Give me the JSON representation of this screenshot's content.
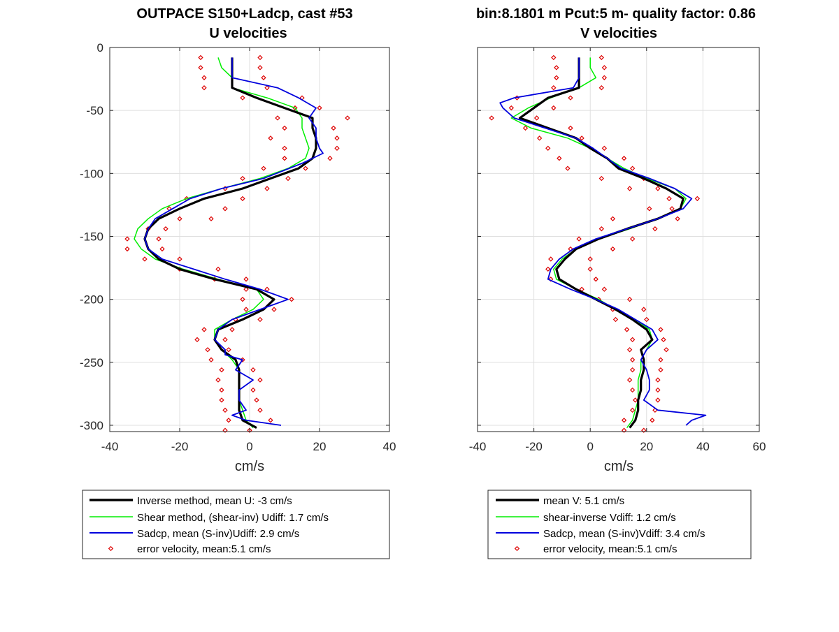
{
  "panels": [
    {
      "title1": "OUTPACE S150+Ladcp, cast #53",
      "title2": "U velocities",
      "xlabel": "cm/s",
      "xlim": [
        -40,
        40
      ],
      "ylim": [
        -305,
        0
      ],
      "xticks": [
        "-40",
        "-20",
        "0",
        "20",
        "40"
      ],
      "yticks": [
        "0",
        "-50",
        "-100",
        "-150",
        "-200",
        "-250",
        "-300"
      ],
      "legend": [
        "Inverse method, mean U:  -3 cm/s",
        "Shear method, (shear-inv)  Udiff:  1.7 cm/s",
        "Sadcp, mean (S-inv)Udiff: 2.9 cm/s",
        "error velocity, mean:5.1 cm/s"
      ]
    },
    {
      "title1": "bin:8.1801 m  Pcut:5 m- quality factor:  0.86",
      "title2": "V velocities",
      "xlabel": "cm/s",
      "xlim": [
        -40,
        60
      ],
      "ylim": [
        -305,
        0
      ],
      "xticks": [
        "-40",
        "-20",
        "0",
        "20",
        "40",
        "60"
      ],
      "yticks": [],
      "legend": [
        "mean V:  5.1 cm/s",
        "shear-inverse Vdiff:  1.2 cm/s",
        "Sadcp, mean (S-inv)Vdiff: 3.4 cm/s",
        "error velocity, mean:5.1 cm/s"
      ]
    }
  ],
  "colors": {
    "inverse": "#000000",
    "shear": "#00ee00",
    "sadcp": "#0000dd",
    "error": "#dd0000"
  },
  "chart_data": [
    {
      "type": "line",
      "series": [
        {
          "key": "inverse",
          "depth": [
            -8,
            -32,
            -40,
            -48,
            -56,
            -64,
            -72,
            -80,
            -88,
            -96,
            -104,
            -112,
            -120,
            -128,
            -136,
            -144,
            -152,
            -160,
            -168,
            -176,
            -184,
            -192,
            -200,
            -208,
            -216,
            -224,
            -232,
            -240,
            -248,
            -256,
            -264,
            -272,
            -280,
            -288,
            -296,
            -302
          ],
          "values": [
            -5,
            -5,
            2,
            10,
            18,
            18,
            19,
            19,
            18,
            14,
            6,
            -2,
            -13,
            -20,
            -26,
            -29,
            -30,
            -29,
            -26,
            -20,
            -10,
            2,
            7,
            4,
            -2,
            -9,
            -10,
            -8,
            -4,
            -3,
            -3,
            -3,
            -3,
            -3,
            -2,
            2
          ]
        },
        {
          "key": "shear",
          "depth": [
            -8,
            -16,
            -24,
            -32,
            -40,
            -48,
            -56,
            -64,
            -72,
            -80,
            -88,
            -96,
            -104,
            -112,
            -120,
            -128,
            -136,
            -144,
            -152,
            -160,
            -168,
            -176,
            -184,
            -192,
            -200,
            -208,
            -216,
            -224,
            -232,
            -240,
            -248,
            -256,
            -264,
            -272,
            -280,
            -288,
            -296,
            -302
          ],
          "values": [
            -9,
            -8,
            -5,
            -5,
            5,
            13,
            15,
            15,
            16,
            17,
            16,
            11,
            3,
            -8,
            -18,
            -25,
            -29,
            -32,
            -33,
            -31,
            -27,
            -19,
            -9,
            2,
            4,
            1,
            -5,
            -10,
            -10,
            -8,
            -5,
            -3,
            -3,
            -3,
            -3,
            -2,
            -1,
            1
          ]
        },
        {
          "key": "sadcp",
          "depth": [
            -8,
            -24,
            -32,
            -40,
            -48,
            -56,
            -64,
            -72,
            -80,
            -84,
            -92,
            -104,
            -112,
            -120,
            -128,
            -136,
            -144,
            -152,
            -160,
            -168,
            -176,
            -184,
            -192,
            -196,
            -200,
            -208,
            -216,
            -224,
            -232,
            -240,
            -244,
            -248,
            -256,
            -264,
            -272,
            -280,
            -288,
            -292,
            -296,
            -300
          ],
          "values": [
            -5,
            -5,
            8,
            14,
            19,
            17,
            19,
            19,
            20,
            21,
            15,
            4,
            -8,
            -17,
            -22,
            -27,
            -29,
            -30,
            -29,
            -25,
            -16,
            -7,
            3,
            7,
            11,
            3,
            -5,
            -9,
            -10,
            -7,
            -7,
            -2,
            -4,
            1,
            -3,
            -3,
            -1,
            -5,
            -1,
            9
          ]
        },
        {
          "key": "error",
          "depth": [
            -8,
            -8,
            -16,
            -16,
            -24,
            -24,
            -32,
            -32,
            -40,
            -40,
            -48,
            -48,
            -56,
            -56,
            -64,
            -64,
            -72,
            -72,
            -80,
            -80,
            -88,
            -88,
            -96,
            -96,
            -104,
            -104,
            -112,
            -112,
            -120,
            -120,
            -128,
            -128,
            -136,
            -136,
            -144,
            -144,
            -152,
            -152,
            -160,
            -160,
            -168,
            -168,
            -176,
            -176,
            -184,
            -184,
            -192,
            -192,
            -200,
            -200,
            -208,
            -208,
            -216,
            -216,
            -224,
            -224,
            -232,
            -232,
            -240,
            -240,
            -248,
            -248,
            -256,
            -256,
            -264,
            -264,
            -272,
            -272,
            -280,
            -280,
            -288,
            -288,
            -296,
            -296,
            -304,
            -304
          ],
          "values": [
            -14,
            3,
            -14,
            3,
            -13,
            4,
            -13,
            5,
            -2,
            15,
            13,
            20,
            8,
            28,
            10,
            24,
            6,
            25,
            10,
            25,
            10,
            23,
            4,
            16,
            -2,
            11,
            -7,
            5,
            -18,
            -2,
            -23,
            -7,
            -20,
            -11,
            -29,
            -24,
            -35,
            -26,
            -35,
            -25,
            -30,
            -20,
            -20,
            -9,
            -10,
            -1,
            -1,
            5,
            -2,
            12,
            -1,
            7,
            -4,
            3,
            -13,
            -5,
            -15,
            -7,
            -12,
            -6,
            -11,
            -2,
            -8,
            1,
            -9,
            3,
            -8,
            1,
            -8,
            2,
            -7,
            3,
            -6,
            6,
            -7,
            0
          ]
        }
      ]
    },
    {
      "type": "line",
      "series": [
        {
          "key": "inverse",
          "depth": [
            -8,
            -32,
            -40,
            -48,
            -56,
            -64,
            -72,
            -80,
            -88,
            -96,
            -104,
            -112,
            -120,
            -128,
            -136,
            -144,
            -152,
            -160,
            -168,
            -176,
            -184,
            -192,
            -200,
            -208,
            -216,
            -224,
            -232,
            -240,
            -248,
            -256,
            -264,
            -272,
            -280,
            -288,
            -296,
            -302
          ],
          "values": [
            -4,
            -4,
            -15,
            -20,
            -25,
            -15,
            -5,
            0,
            6,
            10,
            19,
            27,
            33,
            32,
            24,
            13,
            3,
            -5,
            -9,
            -12,
            -11,
            -5,
            2,
            9,
            15,
            20,
            22,
            18,
            19,
            19,
            18,
            18,
            17,
            17,
            16,
            14
          ]
        },
        {
          "key": "shear",
          "depth": [
            -8,
            -16,
            -24,
            -32,
            -40,
            -48,
            -56,
            -64,
            -72,
            -80,
            -88,
            -96,
            -104,
            -112,
            -120,
            -128,
            -136,
            -144,
            -152,
            -160,
            -168,
            -176,
            -184,
            -192,
            -200,
            -208,
            -216,
            -224,
            -232,
            -240,
            -248,
            -256,
            -264,
            -272,
            -280,
            -288,
            -296,
            -302
          ],
          "values": [
            0,
            0,
            2,
            -4,
            -14,
            -22,
            -28,
            -21,
            -8,
            0,
            6,
            12,
            20,
            30,
            34,
            32,
            24,
            14,
            3,
            -5,
            -10,
            -13,
            -12,
            -5,
            3,
            9,
            16,
            21,
            22,
            20,
            18,
            18,
            17,
            17,
            17,
            16,
            15,
            13
          ]
        },
        {
          "key": "sadcp",
          "depth": [
            -8,
            -24,
            -32,
            -40,
            -44,
            -48,
            -56,
            -64,
            -72,
            -80,
            -88,
            -96,
            -104,
            -112,
            -120,
            -128,
            -136,
            -144,
            -152,
            -160,
            -168,
            -176,
            -184,
            -192,
            -200,
            -208,
            -216,
            -224,
            -232,
            -240,
            -248,
            -256,
            -264,
            -272,
            -280,
            -288,
            -292,
            -296,
            -300
          ],
          "values": [
            -4,
            -4,
            -6,
            -27,
            -32,
            -31,
            -27,
            -16,
            -5,
            1,
            6,
            11,
            21,
            30,
            36,
            33,
            24,
            13,
            2,
            -6,
            -11,
            -14,
            -15,
            -7,
            2,
            10,
            16,
            22,
            24,
            20,
            18,
            20,
            21,
            21,
            19,
            24,
            41,
            36,
            34
          ]
        },
        {
          "key": "error",
          "depth": [
            -8,
            -8,
            -16,
            -16,
            -24,
            -24,
            -32,
            -32,
            -40,
            -40,
            -48,
            -48,
            -56,
            -56,
            -64,
            -64,
            -72,
            -72,
            -80,
            -80,
            -88,
            -88,
            -96,
            -96,
            -104,
            -104,
            -112,
            -112,
            -120,
            -120,
            -128,
            -128,
            -136,
            -136,
            -144,
            -144,
            -152,
            -152,
            -160,
            -160,
            -168,
            -168,
            -176,
            -176,
            -184,
            -184,
            -192,
            -192,
            -200,
            -200,
            -208,
            -208,
            -216,
            -216,
            -224,
            -224,
            -232,
            -232,
            -240,
            -240,
            -248,
            -248,
            -256,
            -256,
            -264,
            -264,
            -272,
            -272,
            -280,
            -280,
            -288,
            -288,
            -296,
            -296,
            -304,
            -304
          ],
          "values": [
            -13,
            4,
            -12,
            5,
            -12,
            5,
            -13,
            4,
            -26,
            -7,
            -28,
            -13,
            -35,
            -19,
            -23,
            -7,
            -18,
            -3,
            -15,
            5,
            -11,
            12,
            -8,
            15,
            4,
            19,
            14,
            24,
            28,
            38,
            21,
            29,
            8,
            31,
            4,
            23,
            -4,
            15,
            -7,
            8,
            -14,
            0,
            -15,
            0,
            -14,
            2,
            -3,
            5,
            3,
            14,
            8,
            19,
            9,
            20,
            13,
            25,
            15,
            26,
            14,
            27,
            15,
            25,
            15,
            25,
            14,
            24,
            15,
            24,
            16,
            24,
            15,
            23,
            12,
            22,
            12,
            19
          ]
        }
      ]
    }
  ]
}
